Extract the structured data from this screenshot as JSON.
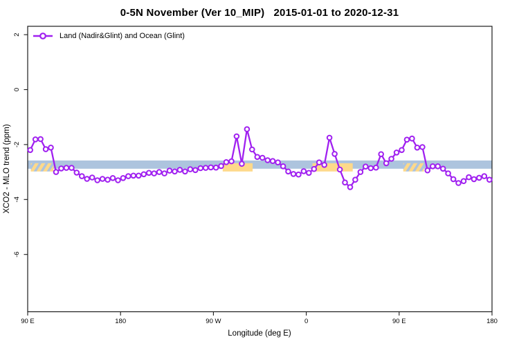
{
  "chart_data": {
    "type": "line",
    "title": "0-5N November (Ver 10_MIP)   2015-01-01 to 2020-12-31",
    "xlabel": "Longitude (deg E)",
    "ylabel": "XCO2 - MLO trend (ppm)",
    "grid": false,
    "legend": {
      "position": "top-left-inside",
      "entries": [
        {
          "label": "Land (Nadir&Glint) and Ocean (Glint)",
          "color": "#a020f0",
          "marker": "open-circle"
        }
      ]
    },
    "x_axis": {
      "note": "longitude increases eastward and wraps around the dateline",
      "ticks_lon_continuous": [
        90,
        180,
        270,
        360,
        450,
        540
      ],
      "tick_labels": [
        "90 E",
        "180",
        "90 W",
        "0",
        "90 E",
        "180"
      ],
      "range_lon_continuous": [
        90,
        540
      ]
    },
    "y_axis": {
      "ticks": [
        2,
        0,
        -2,
        -4,
        -6
      ],
      "tick_labels": [
        "2",
        "0",
        "-2",
        "-4",
        "-6"
      ],
      "range": [
        -8.1,
        2.3
      ]
    },
    "reference_band": {
      "value_top": -2.58,
      "value_bottom": -2.88,
      "blue_color": "#adc4de",
      "orange_color": "#fed98a",
      "orange_value_top": -2.68,
      "orange_value_bottom": -2.98,
      "orange_segments_lon": [
        {
          "from": 93,
          "to": 115,
          "style": "hatched"
        },
        {
          "from": 279,
          "to": 308,
          "style": "solid"
        },
        {
          "from": 366,
          "to": 405,
          "style": "solid"
        },
        {
          "from": 454,
          "to": 474,
          "style": "hatched"
        }
      ]
    },
    "series": [
      {
        "name": "Land (Nadir&Glint) and Ocean (Glint)",
        "color": "#a020f0",
        "marker": "open-circle",
        "marker_fill": "#ffffff",
        "x_lon_continuous": [
          92.5,
          97.5,
          102.5,
          107.5,
          112.5,
          117.5,
          122.5,
          127.5,
          132.5,
          137.5,
          142.5,
          147.5,
          152.5,
          157.5,
          162.5,
          167.5,
          172.5,
          177.5,
          182.5,
          187.5,
          192.5,
          197.5,
          202.5,
          207.5,
          212.5,
          217.5,
          222.5,
          227.5,
          232.5,
          237.5,
          242.5,
          247.5,
          252.5,
          257.5,
          262.5,
          267.5,
          272.5,
          277.5,
          282.5,
          287.5,
          292.5,
          297.5,
          302.5,
          307.5,
          312.5,
          317.5,
          322.5,
          327.5,
          332.5,
          337.5,
          342.5,
          347.5,
          352.5,
          357.5,
          362.5,
          367.5,
          372.5,
          377.5,
          382.5,
          387.5,
          392.5,
          397.5,
          402.5,
          407.5,
          412.5,
          417.5,
          422.5,
          427.5,
          432.5,
          437.5,
          442.5,
          447.5,
          452.5,
          457.5,
          462.5,
          467.5,
          472.5,
          477.5,
          482.5,
          487.5,
          492.5,
          497.5,
          502.5,
          507.5,
          512.5,
          517.5,
          522.5,
          527.5,
          532.5,
          537.5
        ],
        "values_ppm": [
          -2.2,
          -1.81,
          -1.8,
          -2.17,
          -2.11,
          -3.0,
          -2.87,
          -2.85,
          -2.85,
          -3.02,
          -3.15,
          -3.25,
          -3.2,
          -3.3,
          -3.25,
          -3.28,
          -3.22,
          -3.3,
          -3.22,
          -3.15,
          -3.13,
          -3.13,
          -3.08,
          -3.03,
          -3.05,
          -3.0,
          -3.05,
          -2.95,
          -2.98,
          -2.92,
          -2.98,
          -2.9,
          -2.93,
          -2.86,
          -2.85,
          -2.83,
          -2.84,
          -2.78,
          -2.64,
          -2.61,
          -1.7,
          -2.7,
          -1.44,
          -2.18,
          -2.45,
          -2.48,
          -2.57,
          -2.6,
          -2.65,
          -2.79,
          -2.98,
          -3.07,
          -3.09,
          -2.97,
          -3.03,
          -2.89,
          -2.65,
          -2.74,
          -1.75,
          -2.34,
          -2.91,
          -3.38,
          -3.55,
          -3.28,
          -3.0,
          -2.8,
          -2.86,
          -2.84,
          -2.35,
          -2.68,
          -2.52,
          -2.29,
          -2.2,
          -1.82,
          -1.78,
          -2.11,
          -2.09,
          -2.94,
          -2.79,
          -2.79,
          -2.88,
          -3.05,
          -3.26,
          -3.4,
          -3.33,
          -3.19,
          -3.26,
          -3.21,
          -3.15,
          -3.28
        ]
      }
    ],
    "colors": {
      "series_purple": "#a020f0",
      "band_blue": "#adc4de",
      "band_orange": "#fed98a",
      "axis": "#1a1a1a"
    }
  }
}
